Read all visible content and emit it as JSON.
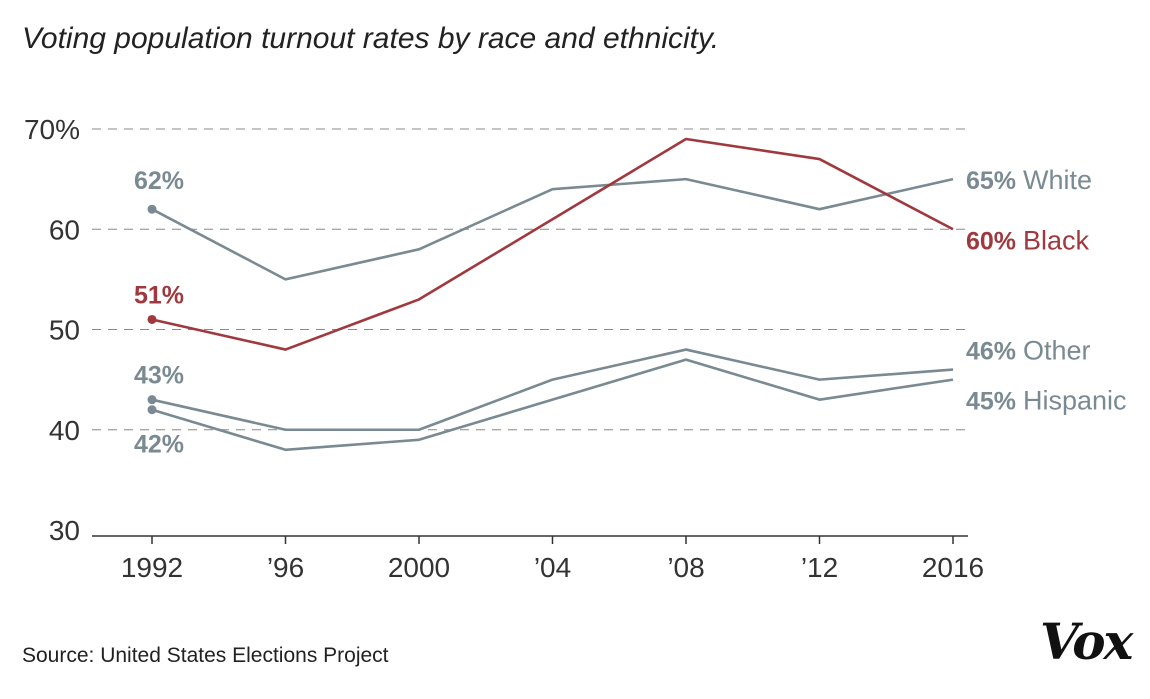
{
  "title": "Voting population turnout rates by race and ethnicity.",
  "source": "Source: United States Elections Project",
  "logo": "Vox",
  "colors": {
    "gray": "#7a8a92",
    "red": "#a0393e",
    "grid": "#888888",
    "axis": "#333333"
  },
  "chart_data": {
    "type": "line",
    "title": "Voting population turnout rates by race and ethnicity.",
    "x": [
      1992,
      1996,
      2000,
      2004,
      2008,
      2012,
      2016
    ],
    "x_tick_labels": [
      "1992",
      "’96",
      "2000",
      "’04",
      "’08",
      "’12",
      "2016"
    ],
    "y_ticks": [
      30,
      40,
      50,
      60,
      70
    ],
    "y_tick_labels": [
      "30",
      "40",
      "50",
      "60",
      "70%"
    ],
    "ylim": [
      30,
      70
    ],
    "grid": "horizontal dashed",
    "series": [
      {
        "name": "White",
        "color": "#7a8a92",
        "values": [
          62,
          55,
          58,
          64,
          65,
          62,
          65
        ],
        "start_label": "62%",
        "end_value": "65%"
      },
      {
        "name": "Black",
        "color": "#a0393e",
        "values": [
          51,
          48,
          53,
          61,
          69,
          67,
          60
        ],
        "start_label": "51%",
        "end_value": "60%"
      },
      {
        "name": "Other",
        "color": "#7a8a92",
        "values": [
          43,
          40,
          40,
          45,
          48,
          45,
          46
        ],
        "start_label": "43%",
        "end_value": "46%"
      },
      {
        "name": "Hispanic",
        "color": "#7a8a92",
        "values": [
          42,
          38,
          39,
          43,
          47,
          43,
          45
        ],
        "start_label": "42%",
        "end_value": "45%"
      }
    ]
  }
}
